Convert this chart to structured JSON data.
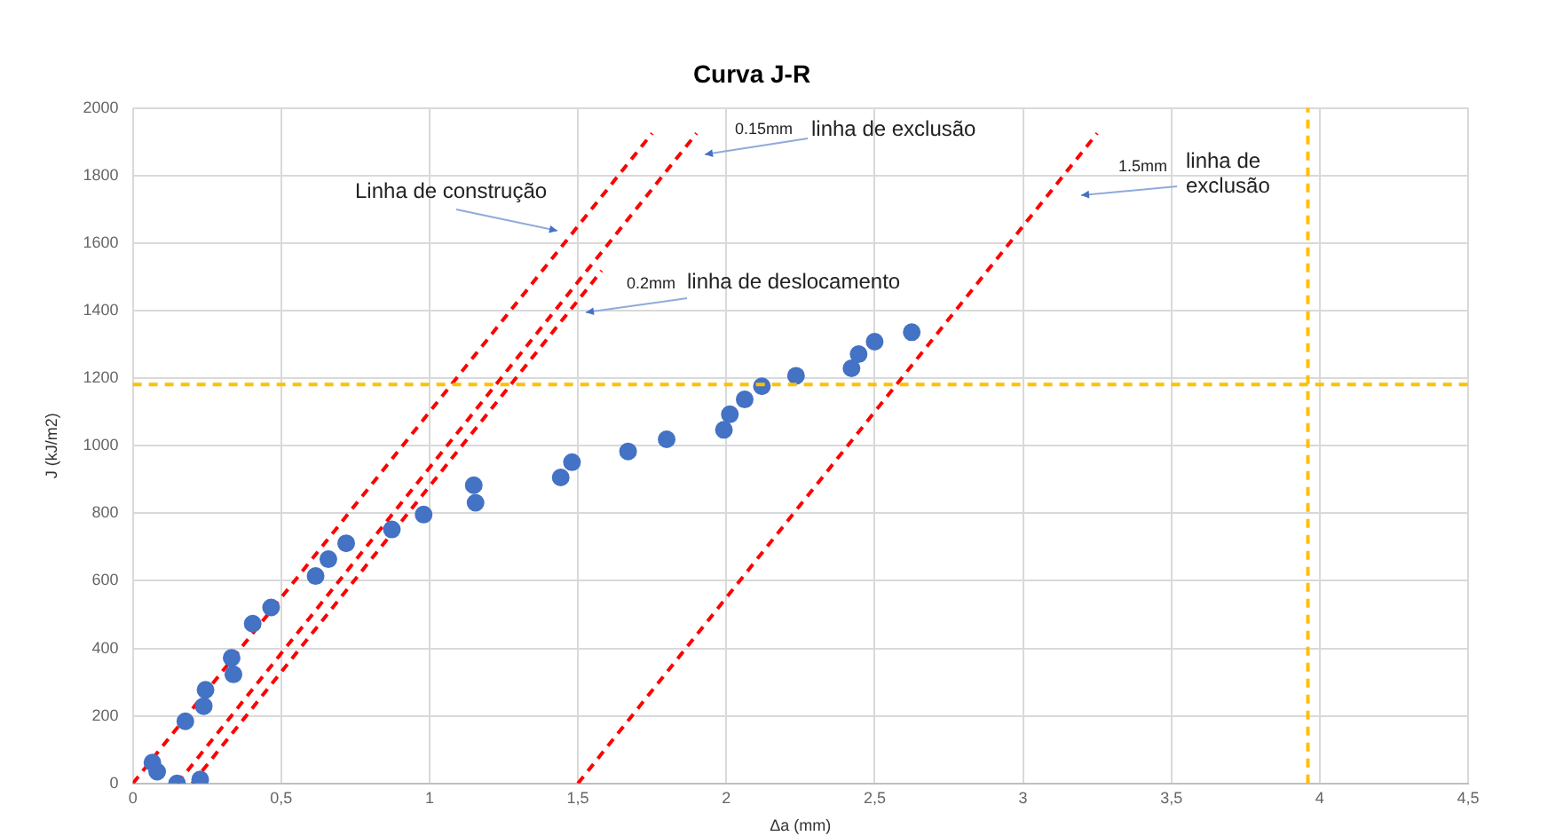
{
  "chart_data": {
    "type": "scatter",
    "title": "Curva J-R",
    "xlabel": "Δa (mm)",
    "ylabel": "J (kJ/m2)",
    "xlim": [
      0,
      4.5
    ],
    "xticks": [
      0,
      {
        "value": 0.5,
        "label": "0,5"
      },
      1,
      {
        "value": 1.5,
        "label": "1,5"
      },
      2,
      {
        "value": 2.5,
        "label": "2,5"
      },
      3,
      {
        "value": 3.5,
        "label": "3,5"
      },
      4,
      {
        "value": 4.5,
        "label": "4,5"
      }
    ],
    "ylim": [
      0,
      2000
    ],
    "yticks": [
      0,
      200,
      400,
      600,
      800,
      1000,
      1200,
      1400,
      1600,
      1800,
      2000
    ],
    "grid": true,
    "legend": false,
    "marker": "circle",
    "series": [
      {
        "color": "#4472c4",
        "x": [
          0.066,
          0.082,
          0.149,
          0.227,
          0.177,
          0.239,
          0.245,
          0.333,
          0.339,
          0.404,
          0.466,
          0.616,
          0.659,
          0.719,
          0.873,
          0.98,
          1.149,
          1.155,
          1.442,
          1.48,
          1.669,
          1.799,
          1.992,
          2.012,
          2.062,
          2.12,
          2.235,
          2.422,
          2.446,
          2.5,
          2.625
        ],
        "values": [
          62,
          35,
          0,
          12,
          184,
          229,
          277,
          372,
          323,
          473,
          521,
          614,
          664,
          711,
          752,
          796,
          883,
          831,
          906,
          951,
          983,
          1019,
          1047,
          1093,
          1137,
          1176,
          1207,
          1229,
          1271,
          1308,
          1336
        ]
      },
      {
        "type": "line",
        "color": "#ff0000",
        "marker": "none",
        "line_style": "dashed",
        "x": [
          0,
          1.75
        ],
        "values": [
          0,
          1925
        ]
      },
      {
        "type": "line",
        "color": "#ff0000",
        "marker": "none",
        "line_style": "dashed",
        "x": [
          0.15,
          1.9
        ],
        "values": [
          0,
          1925
        ]
      },
      {
        "type": "line",
        "color": "#ff0000",
        "marker": "none",
        "line_style": "dashed",
        "x": [
          0.2,
          1.58
        ],
        "values": [
          0,
          1518
        ]
      },
      {
        "type": "line",
        "color": "#ff0000",
        "marker": "none",
        "line_style": "dashed",
        "x": [
          1.5,
          3.25
        ],
        "values": [
          0,
          1925
        ]
      }
    ],
    "ref_lines": [
      {
        "axis": "y",
        "value": 1181,
        "color": "#ffc000",
        "line_style": "dashed"
      },
      {
        "axis": "x",
        "value": 3.96,
        "color": "#ffc000",
        "line_style": "dashed"
      }
    ],
    "annotations": [
      "Linha de construção",
      "0.15mm",
      "linha de exclusão",
      "0.2mm",
      "linha de deslocamento",
      "1.5mm",
      "linha de exclusão"
    ]
  }
}
